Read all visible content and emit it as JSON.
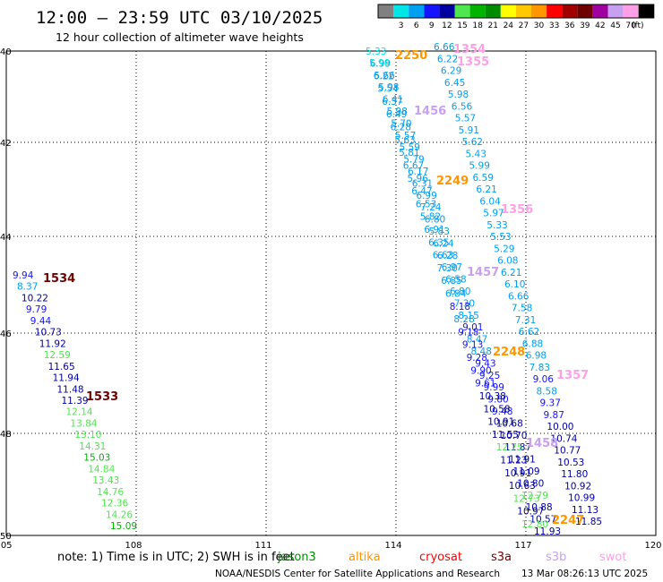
{
  "header": {
    "title": "12:00 – 23:59 UTC 03/10/2025",
    "subtitle": "12 hour collection of altimeter wave heights"
  },
  "scale": {
    "unit": "(ft)",
    "bins": [
      {
        "label": "",
        "color": "#808080"
      },
      {
        "label": "3",
        "color": "#00e6e6"
      },
      {
        "label": "6",
        "color": "#00a0f0"
      },
      {
        "label": "9",
        "color": "#1414ff"
      },
      {
        "label": "12",
        "color": "#0000a0"
      },
      {
        "label": "15",
        "color": "#50e650"
      },
      {
        "label": "18",
        "color": "#00b400"
      },
      {
        "label": "21",
        "color": "#008c00"
      },
      {
        "label": "24",
        "color": "#ffff00"
      },
      {
        "label": "27",
        "color": "#ffc800"
      },
      {
        "label": "30",
        "color": "#ff9600"
      },
      {
        "label": "33",
        "color": "#ff0000"
      },
      {
        "label": "36",
        "color": "#a00000"
      },
      {
        "label": "39",
        "color": "#6e0000"
      },
      {
        "label": "42",
        "color": "#a000a0"
      },
      {
        "label": "45",
        "color": "#c8a0f0"
      },
      {
        "label": "70",
        "color": "#ffa0e6"
      },
      {
        "label": "",
        "color": "#000000"
      }
    ]
  },
  "map": {
    "lon_ticks": [
      "105",
      "108",
      "111",
      "114",
      "117",
      "120"
    ],
    "lat_ticks": [
      "40",
      "42",
      "44",
      "46",
      "48",
      "50"
    ]
  },
  "tracks": [
    {
      "id": "east_pass",
      "obs": [
        [
          "6.66",
          "#00a0f0"
        ],
        [
          "6.22",
          "#00a0f0"
        ],
        [
          "6.29",
          "#00a0f0"
        ],
        [
          "6.45",
          "#00a0f0"
        ],
        [
          "5.98",
          "#00a0f0"
        ],
        [
          "6.56",
          "#00a0f0"
        ],
        [
          "5.57",
          "#00a0f0"
        ],
        [
          "5.91",
          "#00a0f0"
        ],
        [
          "5.62",
          "#00a0f0"
        ],
        [
          "5.43",
          "#00a0f0"
        ],
        [
          "5.99",
          "#00a0f0"
        ],
        [
          "6.59",
          "#00a0f0"
        ],
        [
          "6.21",
          "#00a0f0"
        ],
        [
          "6.04",
          "#00a0f0"
        ],
        [
          "5.97",
          "#00a0f0"
        ],
        [
          "5.33",
          "#00a0f0"
        ],
        [
          "5.53",
          "#00a0f0"
        ],
        [
          "5.29",
          "#00a0f0"
        ],
        [
          "6.08",
          "#00a0f0"
        ],
        [
          "6.21",
          "#00a0f0"
        ],
        [
          "6.10",
          "#00a0f0"
        ],
        [
          "6.66",
          "#00a0f0"
        ],
        [
          "7.58",
          "#00a0f0"
        ],
        [
          "7.31",
          "#00a0f0"
        ],
        [
          "6.62",
          "#00a0f0"
        ],
        [
          "6.88",
          "#00a0f0"
        ],
        [
          "6.98",
          "#00a0f0"
        ],
        [
          "7.83",
          "#00a0f0"
        ],
        [
          "9.06",
          "#1414ff"
        ],
        [
          "8.58",
          "#00a0f0"
        ],
        [
          "9.37",
          "#1414ff"
        ],
        [
          "9.87",
          "#1414ff"
        ],
        [
          "10.00",
          "#0000a0"
        ],
        [
          "10.74",
          "#0000a0"
        ],
        [
          "10.77",
          "#0000a0"
        ],
        [
          "10.53",
          "#0000a0"
        ],
        [
          "11.80",
          "#0000a0"
        ],
        [
          "10.92",
          "#0000a0"
        ],
        [
          "10.99",
          "#0000a0"
        ],
        [
          "11.13",
          "#0000a0"
        ],
        [
          "11.85",
          "#0000a0"
        ]
      ]
    },
    {
      "id": "west_pass",
      "obs": [
        [
          "9.94",
          "#1414ff"
        ],
        [
          "8.37",
          "#00a0f0"
        ],
        [
          "10.22",
          "#0000a0"
        ],
        [
          "9.79",
          "#1414ff"
        ],
        [
          "9.44",
          "#1414ff"
        ],
        [
          "10.73",
          "#0000a0"
        ],
        [
          "11.92",
          "#0000a0"
        ],
        [
          "12.59",
          "#50e650"
        ],
        [
          "11.65",
          "#0000a0"
        ],
        [
          "11.94",
          "#0000a0"
        ],
        [
          "11.48",
          "#0000a0"
        ],
        [
          "11.39",
          "#0000a0"
        ],
        [
          "12.14",
          "#50e650"
        ],
        [
          "13.84",
          "#50e650"
        ],
        [
          "13.10",
          "#50e650"
        ],
        [
          "14.31",
          "#50e650"
        ],
        [
          "15.03",
          "#00b400"
        ],
        [
          "14.84",
          "#50e650"
        ],
        [
          "13.43",
          "#50e650"
        ],
        [
          "14.76",
          "#50e650"
        ],
        [
          "12.36",
          "#50e650"
        ],
        [
          "14.26",
          "#50e650"
        ],
        [
          "15.09",
          "#00b400"
        ]
      ]
    },
    {
      "id": "pass_a",
      "obs": [
        [
          "5.33",
          "#00e6e6"
        ],
        [
          "6.99",
          "#00a0f0"
        ],
        [
          "5.66",
          "#00a0f0"
        ],
        [
          "5.98",
          "#00a0f0"
        ],
        [
          "6.41",
          "#00a0f0"
        ],
        [
          "5.98",
          "#00a0f0"
        ],
        [
          "5.70",
          "#00a0f0"
        ],
        [
          "5.57",
          "#00a0f0"
        ],
        [
          "5.59",
          "#00a0f0"
        ],
        [
          "5.79",
          "#00a0f0"
        ],
        [
          "6.17",
          "#00a0f0"
        ],
        [
          "6.31",
          "#00a0f0"
        ],
        [
          "6.99",
          "#00a0f0"
        ],
        [
          "7.24",
          "#00a0f0"
        ],
        [
          "6.80",
          "#00a0f0"
        ],
        [
          "5.83",
          "#00a0f0"
        ],
        [
          "6.24",
          "#00a0f0"
        ],
        [
          "6.28",
          "#00a0f0"
        ],
        [
          "6.97",
          "#00a0f0"
        ],
        [
          "6.58",
          "#00a0f0"
        ],
        [
          "6.80",
          "#00a0f0"
        ],
        [
          "7.30",
          "#00a0f0"
        ],
        [
          "8.15",
          "#00a0f0"
        ],
        [
          "9.01",
          "#1414ff"
        ],
        [
          "8.47",
          "#00a0f0"
        ],
        [
          "8.48",
          "#00a0f0"
        ],
        [
          "9.43",
          "#1414ff"
        ],
        [
          "9.25",
          "#1414ff"
        ],
        [
          "9.99",
          "#1414ff"
        ],
        [
          "9.80",
          "#1414ff"
        ],
        [
          "9.48",
          "#1414ff"
        ],
        [
          "10.68",
          "#0000a0"
        ],
        [
          "10.70",
          "#0000a0"
        ],
        [
          "11.87",
          "#0000a0"
        ],
        [
          "11.91",
          "#0000a0"
        ],
        [
          "11.09",
          "#0000a0"
        ],
        [
          "10.80",
          "#0000a0"
        ],
        [
          "12.79",
          "#50e650"
        ],
        [
          "10.88",
          "#0000a0"
        ],
        [
          "10.57",
          "#0000a0"
        ],
        [
          "11.93",
          "#0000a0"
        ]
      ]
    },
    {
      "id": "pass_b",
      "obs": [
        [
          "5.98",
          "#00e6e6"
        ],
        [
          "6.22",
          "#00a0f0"
        ],
        [
          "5.54",
          "#00a0f0"
        ],
        [
          "6.37",
          "#00a0f0"
        ],
        [
          "6.49",
          "#00a0f0"
        ],
        [
          "6.28",
          "#00a0f0"
        ],
        [
          "5.63",
          "#00a0f0"
        ],
        [
          "5.81",
          "#00a0f0"
        ],
        [
          "6.67",
          "#00a0f0"
        ],
        [
          "5.96",
          "#00a0f0"
        ],
        [
          "6.47",
          "#00a0f0"
        ],
        [
          "6.53",
          "#00a0f0"
        ],
        [
          "5.82",
          "#00a0f0"
        ],
        [
          "6.91",
          "#00a0f0"
        ],
        [
          "6.35",
          "#00a0f0"
        ],
        [
          "6.63",
          "#00a0f0"
        ],
        [
          "7.30",
          "#00a0f0"
        ],
        [
          "6.85",
          "#00a0f0"
        ],
        [
          "6.84",
          "#00a0f0"
        ],
        [
          "8.18",
          "#1414ff"
        ],
        [
          "8.28",
          "#00a0f0"
        ],
        [
          "9.18",
          "#1414ff"
        ],
        [
          "9.13",
          "#1414ff"
        ],
        [
          "9.28",
          "#1414ff"
        ],
        [
          "9.90",
          "#1414ff"
        ],
        [
          "9.61",
          "#1414ff"
        ],
        [
          "10.38",
          "#0000a0"
        ],
        [
          "10.58",
          "#0000a0"
        ],
        [
          "10.91",
          "#0000a0"
        ],
        [
          "11.55",
          "#0000a0"
        ],
        [
          "12.75",
          "#50e650"
        ],
        [
          "11.23",
          "#0000a0"
        ],
        [
          "10.91",
          "#0000a0"
        ],
        [
          "10.63",
          "#0000a0"
        ],
        [
          "12.73",
          "#50e650"
        ],
        [
          "10.97",
          "#0000a0"
        ],
        [
          "12.80",
          "#50e650"
        ]
      ]
    }
  ],
  "times": [
    {
      "label": "2250",
      "color": "#ff9600"
    },
    {
      "label": "1354",
      "color": "#ffa0e6"
    },
    {
      "label": "1355",
      "color": "#ffa0e6"
    },
    {
      "label": "1456",
      "color": "#c8a0f0"
    },
    {
      "label": "2249",
      "color": "#ff9600"
    },
    {
      "label": "1356",
      "color": "#ffa0e6"
    },
    {
      "label": "1457",
      "color": "#c8a0f0"
    },
    {
      "label": "2248",
      "color": "#ff9600"
    },
    {
      "label": "1357",
      "color": "#ffa0e6"
    },
    {
      "label": "1458",
      "color": "#c8a0f0"
    },
    {
      "label": "2247",
      "color": "#ff9600"
    },
    {
      "label": "1534",
      "color": "#6e0000"
    },
    {
      "label": "1533",
      "color": "#6e0000"
    }
  ],
  "footer": {
    "note": "note:  1) Time is in UTC; 2) SWH is in feet",
    "satellites": [
      {
        "label": "jason3",
        "color": "#008c00"
      },
      {
        "label": "altika",
        "color": "#ff9600"
      },
      {
        "label": "cryosat",
        "color": "#ff0000"
      },
      {
        "label": "s3a",
        "color": "#6e0000"
      },
      {
        "label": "s3b",
        "color": "#c8a0f0"
      },
      {
        "label": "swot",
        "color": "#ffa0e6"
      }
    ],
    "credit": "NOAA/NESDIS Center for Satellite Applications and Research",
    "timestamp": "13 Mar 08:26:13 UTC 2025"
  }
}
